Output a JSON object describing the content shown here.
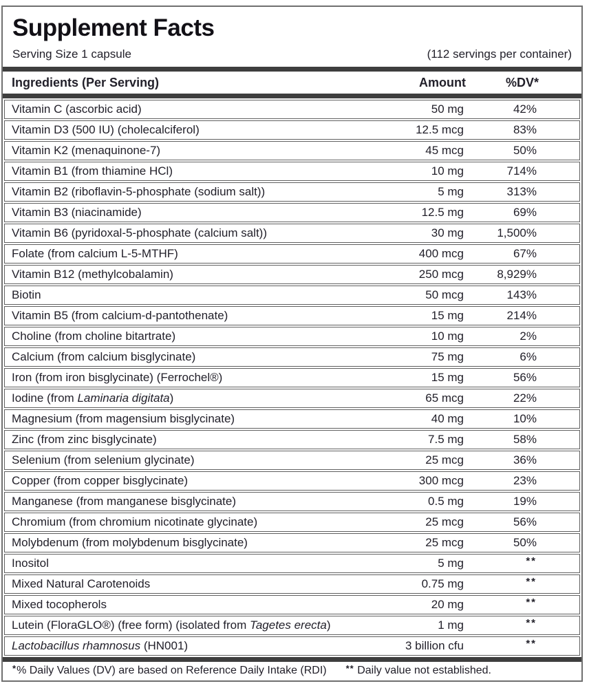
{
  "title": "Supplement Facts",
  "serving": {
    "size": "Serving Size 1 capsule",
    "per_container": "(112 servings per container)"
  },
  "columns": {
    "ingredients": "Ingredients (Per Serving)",
    "amount": "Amount",
    "dv": "%DV*"
  },
  "rows": [
    {
      "pre": "Vitamin C (ascorbic acid)",
      "it": "",
      "post": "",
      "amount": "50 mg",
      "dv": "42%"
    },
    {
      "pre": "Vitamin D3 (500 IU) (cholecalciferol)",
      "it": "",
      "post": "",
      "amount": "12.5 mcg",
      "dv": "83%"
    },
    {
      "pre": "Vitamin K2 (menaquinone-7)",
      "it": "",
      "post": "",
      "amount": "45 mcg",
      "dv": "50%"
    },
    {
      "pre": "Vitamin B1 (from thiamine HCl)",
      "it": "",
      "post": "",
      "amount": "10 mg",
      "dv": "714%"
    },
    {
      "pre": "Vitamin B2 (riboflavin-5-phosphate (sodium salt))",
      "it": "",
      "post": "",
      "amount": "5 mg",
      "dv": "313%"
    },
    {
      "pre": "Vitamin B3 (niacinamide)",
      "it": "",
      "post": "",
      "amount": "12.5 mg",
      "dv": "69%"
    },
    {
      "pre": "Vitamin B6 (pyridoxal-5-phosphate (calcium salt))",
      "it": "",
      "post": "",
      "amount": "30 mg",
      "dv": "1,500%"
    },
    {
      "pre": "Folate (from calcium L-5-MTHF)",
      "it": "",
      "post": "",
      "amount": "400 mcg",
      "dv": "67%"
    },
    {
      "pre": "Vitamin B12 (methylcobalamin)",
      "it": "",
      "post": "",
      "amount": "250 mcg",
      "dv": "8,929%"
    },
    {
      "pre": "Biotin",
      "it": "",
      "post": "",
      "amount": "50 mcg",
      "dv": "143%"
    },
    {
      "pre": "Vitamin B5 (from calcium-d-pantothenate)",
      "it": "",
      "post": "",
      "amount": "15 mg",
      "dv": "214%"
    },
    {
      "pre": "Choline (from choline bitartrate)",
      "it": "",
      "post": "",
      "amount": "10 mg",
      "dv": "2%"
    },
    {
      "pre": "Calcium (from calcium bisglycinate)",
      "it": "",
      "post": "",
      "amount": "75 mg",
      "dv": "6%"
    },
    {
      "pre": "Iron (from iron bisglycinate) (Ferrochel®)",
      "it": "",
      "post": "",
      "amount": "15 mg",
      "dv": "56%"
    },
    {
      "pre": "Iodine (from ",
      "it": "Laminaria digitata",
      "post": ")",
      "amount": "65 mcg",
      "dv": "22%"
    },
    {
      "pre": "Magnesium (from magensium bisglycinate)",
      "it": "",
      "post": "",
      "amount": "40 mg",
      "dv": "10%"
    },
    {
      "pre": "Zinc (from zinc bisglycinate)",
      "it": "",
      "post": "",
      "amount": "7.5 mg",
      "dv": "58%"
    },
    {
      "pre": "Selenium (from selenium glycinate)",
      "it": "",
      "post": "",
      "amount": "25 mcg",
      "dv": "36%"
    },
    {
      "pre": "Copper (from copper bisglycinate)",
      "it": "",
      "post": "",
      "amount": "300 mcg",
      "dv": "23%"
    },
    {
      "pre": "Manganese (from manganese bisglycinate)",
      "it": "",
      "post": "",
      "amount": "0.5 mg",
      "dv": "19%"
    },
    {
      "pre": "Chromium (from chromium nicotinate glycinate)",
      "it": "",
      "post": "",
      "amount": "25 mcg",
      "dv": "56%"
    },
    {
      "pre": "Molybdenum (from molybdenum bisglycinate)",
      "it": "",
      "post": "",
      "amount": "25 mcg",
      "dv": "50%"
    },
    {
      "pre": "Inositol",
      "it": "",
      "post": "",
      "amount": "5 mg",
      "dv": "**"
    },
    {
      "pre": "Mixed Natural Carotenoids",
      "it": "",
      "post": "",
      "amount": "0.75 mg",
      "dv": "**"
    },
    {
      "pre": "Mixed tocopherols",
      "it": "",
      "post": "",
      "amount": "20 mg",
      "dv": "**"
    },
    {
      "pre": "Lutein (FloraGLO®) (free form) (isolated from ",
      "it": "Tagetes erecta",
      "post": ")",
      "amount": "1 mg",
      "dv": "**"
    },
    {
      "pre": "",
      "it": "Lactobacillus rhamnosus",
      "post": " (HN001)",
      "amount": "3 billion cfu",
      "dv": "**"
    }
  ],
  "footnote": {
    "star1": "*",
    "text1": "% Daily Values (DV) are based on Reference Daily Intake (RDI)",
    "star2": "**",
    "text2": "Daily value not established."
  },
  "colors": {
    "text": "#22202a",
    "title": "#121016",
    "outer_border": "#6f6f6f",
    "row_border": "#5f5f5f",
    "bar": "#3e3e3e",
    "background": "#ffffff"
  }
}
